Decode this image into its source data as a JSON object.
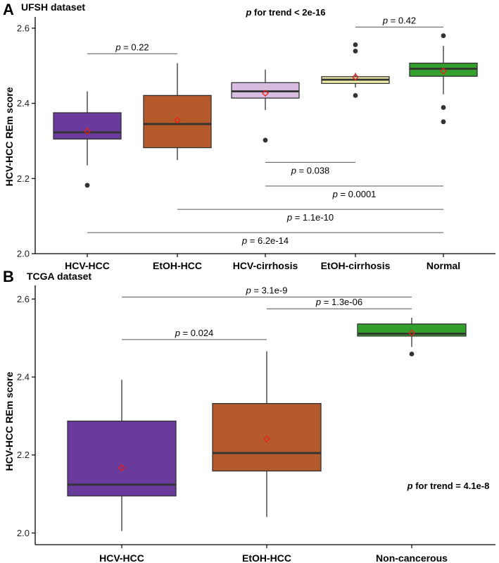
{
  "chart_data": [
    {
      "panel_label": "A",
      "title": "UFSH dataset",
      "type": "box",
      "ylabel": "HCV-HCC REm score",
      "ylim": [
        2.0,
        2.63
      ],
      "yticks": [
        "2.0",
        "2.2",
        "2.4",
        "2.6"
      ],
      "trend_label": "p for trend < 2e-16",
      "trend_position": "top-center",
      "grid": false,
      "categories": [
        "HCV-HCC",
        "EtOH-HCC",
        "HCV-cirrhosis",
        "EtOH-cirrhosis",
        "Normal"
      ],
      "colors": [
        "#6a3a9c",
        "#b55a2a",
        "#d8bde0",
        "#f2f0a8",
        "#33a02c"
      ],
      "boxes": [
        {
          "q1": 2.305,
          "median": 2.323,
          "q3": 2.375,
          "whisker_low": 2.235,
          "whisker_high": 2.432,
          "mean": 2.326,
          "outliers": [
            2.182
          ]
        },
        {
          "q1": 2.282,
          "median": 2.345,
          "q3": 2.421,
          "whisker_low": 2.249,
          "whisker_high": 2.507,
          "mean": 2.355,
          "outliers": []
        },
        {
          "q1": 2.414,
          "median": 2.432,
          "q3": 2.455,
          "whisker_low": 2.382,
          "whisker_high": 2.49,
          "mean": 2.427,
          "outliers": [
            2.302
          ]
        },
        {
          "q1": 2.453,
          "median": 2.463,
          "q3": 2.471,
          "whisker_low": 2.442,
          "whisker_high": 2.481,
          "mean": 2.47,
          "outliers": [
            2.556,
            2.539,
            2.421
          ]
        },
        {
          "q1": 2.472,
          "median": 2.492,
          "q3": 2.507,
          "whisker_low": 2.424,
          "whisker_high": 2.553,
          "mean": 2.486,
          "outliers": [
            2.58,
            2.389,
            2.351
          ]
        }
      ],
      "comparisons": [
        {
          "from": 0,
          "to": 1,
          "y": 2.532,
          "label": "p = 0.22",
          "label_pos": "above"
        },
        {
          "from": 3,
          "to": 4,
          "y": 2.603,
          "label": "p = 0.42",
          "label_pos": "above"
        },
        {
          "from": 2,
          "to": 3,
          "y": 2.243,
          "label": "p = 0.038",
          "label_pos": "below"
        },
        {
          "from": 2,
          "to": 4,
          "y": 2.18,
          "label": "p = 0.0001",
          "label_pos": "below"
        },
        {
          "from": 1,
          "to": 4,
          "y": 2.118,
          "label": "p = 1.1e-10",
          "label_pos": "below"
        },
        {
          "from": 0,
          "to": 4,
          "y": 2.056,
          "label": "p = 6.2e-14",
          "label_pos": "below"
        }
      ]
    },
    {
      "panel_label": "B",
      "title": "TCGA dataset",
      "type": "box",
      "ylabel": "HCV-HCC REm score",
      "ylim": [
        1.97,
        2.635
      ],
      "yticks": [
        "2.0",
        "2.2",
        "2.4",
        "2.6"
      ],
      "trend_label": "p for trend = 4.1e-8",
      "trend_position": "bottom-right",
      "grid": false,
      "categories": [
        "HCV-HCC",
        "EtOH-HCC",
        "Non-cancerous"
      ],
      "colors": [
        "#6a3a9c",
        "#b55a2a",
        "#33a02c"
      ],
      "boxes": [
        {
          "q1": 2.095,
          "median": 2.124,
          "q3": 2.287,
          "whisker_low": 2.005,
          "whisker_high": 2.393,
          "mean": 2.167,
          "outliers": []
        },
        {
          "q1": 2.159,
          "median": 2.205,
          "q3": 2.332,
          "whisker_low": 2.041,
          "whisker_high": 2.466,
          "mean": 2.241,
          "outliers": []
        },
        {
          "q1": 2.505,
          "median": 2.511,
          "q3": 2.536,
          "whisker_low": 2.477,
          "whisker_high": 2.552,
          "mean": 2.513,
          "outliers": [
            2.459
          ]
        }
      ],
      "comparisons": [
        {
          "from": 0,
          "to": 2,
          "y": 2.605,
          "label": "p = 3.1e-9",
          "label_pos": "above"
        },
        {
          "from": 1,
          "to": 2,
          "y": 2.575,
          "label": "p = 1.3e-06",
          "label_pos": "above"
        },
        {
          "from": 0,
          "to": 1,
          "y": 2.496,
          "label": "p = 0.024",
          "label_pos": "above"
        }
      ]
    }
  ]
}
